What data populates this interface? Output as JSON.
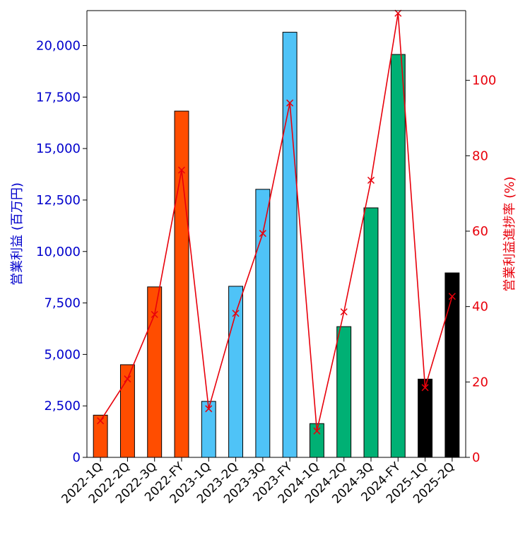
{
  "chart_data": {
    "type": "bar",
    "categories": [
      "2022-1Q",
      "2022-2Q",
      "2022-3Q",
      "2022-FY",
      "2023-1Q",
      "2023-2Q",
      "2023-3Q",
      "2023-FY",
      "2024-1Q",
      "2024-2Q",
      "2024-3Q",
      "2024-FY",
      "2025-1Q",
      "2025-2Q"
    ],
    "bar_colors": [
      "#ff4d00",
      "#ff4d00",
      "#ff4d00",
      "#ff4d00",
      "#4fc3f7",
      "#4fc3f7",
      "#4fc3f7",
      "#4fc3f7",
      "#00b074",
      "#00b074",
      "#00b074",
      "#00b074",
      "#000000",
      "#000000"
    ],
    "series": [
      {
        "type": "bar",
        "axis": "left",
        "values": [
          2050,
          4500,
          8280,
          16820,
          2720,
          8310,
          13020,
          20650,
          1640,
          6350,
          12120,
          19570,
          3800,
          8960
        ]
      },
      {
        "type": "line",
        "axis": "right",
        "color": "#e8000b",
        "marker": "x",
        "values": [
          9.7,
          20.8,
          37.9,
          76.2,
          12.9,
          38.2,
          59.4,
          94.0,
          7.0,
          38.6,
          73.5,
          117.8,
          18.5,
          42.7
        ]
      }
    ],
    "ylabel": "営業利益 (百万円)",
    "ylabel_color": "#0000cc",
    "ylim": [
      0,
      21700
    ],
    "yticks": [
      0,
      2500,
      5000,
      7500,
      10000,
      12500,
      15000,
      17500,
      20000
    ],
    "ytick_labels": [
      "0",
      "2,500",
      "5,000",
      "7,500",
      "10,000",
      "12,500",
      "15,000",
      "17,500",
      "20,000"
    ],
    "y2label": "営業利益進捗率 (%)",
    "y2label_color": "#e8000b",
    "y2lim": [
      0,
      118.5
    ],
    "y2ticks": [
      0,
      20,
      40,
      60,
      80,
      100
    ],
    "y2tick_labels": [
      "0",
      "20",
      "40",
      "60",
      "80",
      "100"
    ],
    "grid": false,
    "legend": "none"
  }
}
